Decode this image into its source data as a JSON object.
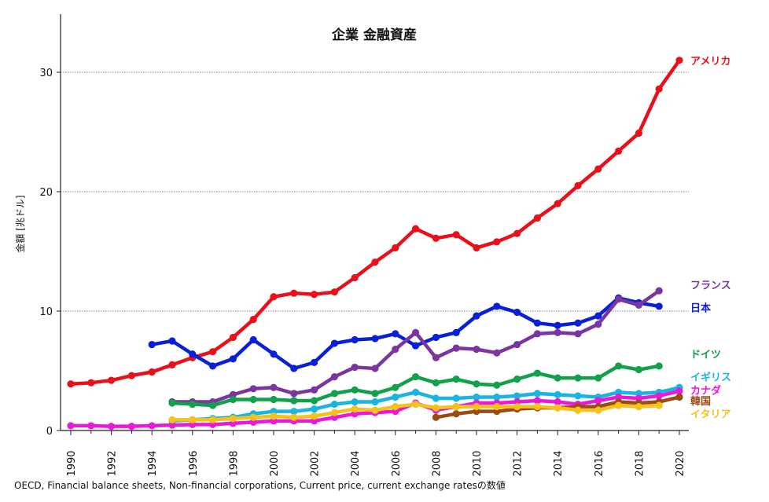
{
  "chart_data": {
    "type": "line",
    "title": "企業 金融資産",
    "ylabel": "金額 [兆ドル]",
    "xlabel": "",
    "xlim": [
      1990,
      2020
    ],
    "ylim": [
      0,
      35
    ],
    "yticks": [
      0,
      10,
      20,
      30
    ],
    "xticks": [
      1990,
      1992,
      1994,
      1996,
      1998,
      2000,
      2002,
      2004,
      2006,
      2008,
      2010,
      2012,
      2014,
      2016,
      2018,
      2020
    ],
    "grid": "horizontal dotted at 10, 20, 30",
    "legend": "labels at right end of lines",
    "source": "OECD, Financial balance sheets, Non-financial corporations, Current price, current exchange ratesの数値",
    "series": [
      {
        "name": "アメリカ",
        "color": "#e8101a",
        "x": [
          1990,
          1991,
          1992,
          1993,
          1994,
          1995,
          1996,
          1997,
          1998,
          1999,
          2000,
          2001,
          2002,
          2003,
          2004,
          2005,
          2006,
          2007,
          2008,
          2009,
          2010,
          2011,
          2012,
          2013,
          2014,
          2015,
          2016,
          2017,
          2018,
          2019,
          2020
        ],
        "values": [
          3.9,
          4.0,
          4.2,
          4.6,
          4.9,
          5.5,
          6.1,
          6.6,
          7.8,
          9.3,
          11.2,
          11.5,
          11.4,
          11.6,
          12.8,
          14.1,
          15.3,
          16.9,
          16.1,
          16.4,
          15.3,
          15.8,
          16.5,
          17.8,
          19.0,
          20.5,
          21.9,
          23.4,
          24.9,
          28.6,
          31.0
        ]
      },
      {
        "name": "日本",
        "color": "#0a1fd8",
        "x": [
          1994,
          1995,
          1996,
          1997,
          1998,
          1999,
          2000,
          2001,
          2002,
          2003,
          2004,
          2005,
          2006,
          2007,
          2008,
          2009,
          2010,
          2011,
          2012,
          2013,
          2014,
          2015,
          2016,
          2017,
          2018,
          2019
        ],
        "values": [
          7.2,
          7.5,
          6.4,
          5.4,
          6.0,
          7.6,
          6.4,
          5.2,
          5.7,
          7.3,
          7.6,
          7.7,
          8.1,
          7.1,
          7.8,
          8.2,
          9.6,
          10.4,
          9.9,
          9.0,
          8.8,
          9.0,
          9.6,
          11.1,
          10.7,
          10.4
        ]
      },
      {
        "name": "フランス",
        "color": "#7a35a0",
        "x": [
          1995,
          1996,
          1997,
          1998,
          1999,
          2000,
          2001,
          2002,
          2003,
          2004,
          2005,
          2006,
          2007,
          2008,
          2009,
          2010,
          2011,
          2012,
          2013,
          2014,
          2015,
          2016,
          2017,
          2018,
          2019
        ],
        "values": [
          2.4,
          2.4,
          2.4,
          3.0,
          3.5,
          3.6,
          3.1,
          3.4,
          4.5,
          5.3,
          5.2,
          6.8,
          8.2,
          6.1,
          6.9,
          6.8,
          6.5,
          7.2,
          8.1,
          8.2,
          8.1,
          8.9,
          11.0,
          10.5,
          11.7
        ]
      },
      {
        "name": "ドイツ",
        "color": "#12a04a",
        "x": [
          1995,
          1996,
          1997,
          1998,
          1999,
          2000,
          2001,
          2002,
          2003,
          2004,
          2005,
          2006,
          2007,
          2008,
          2009,
          2010,
          2011,
          2012,
          2013,
          2014,
          2015,
          2016,
          2017,
          2018,
          2019
        ],
        "values": [
          2.3,
          2.2,
          2.1,
          2.6,
          2.6,
          2.6,
          2.5,
          2.5,
          3.1,
          3.4,
          3.1,
          3.6,
          4.5,
          4.0,
          4.3,
          3.9,
          3.8,
          4.3,
          4.8,
          4.4,
          4.4,
          4.4,
          5.4,
          5.1,
          5.4
        ]
      },
      {
        "name": "イギリス",
        "color": "#19b5e0",
        "x": [
          1995,
          1996,
          1997,
          1998,
          1999,
          2000,
          2001,
          2002,
          2003,
          2004,
          2005,
          2006,
          2007,
          2008,
          2009,
          2010,
          2011,
          2012,
          2013,
          2014,
          2015,
          2016,
          2017,
          2018,
          2019,
          2020
        ],
        "values": [
          0.8,
          0.9,
          1.0,
          1.1,
          1.4,
          1.6,
          1.6,
          1.8,
          2.2,
          2.4,
          2.4,
          2.8,
          3.2,
          2.7,
          2.7,
          2.8,
          2.8,
          2.9,
          3.1,
          3.0,
          2.9,
          2.8,
          3.2,
          3.1,
          3.2,
          3.6
        ]
      },
      {
        "name": "カナダ",
        "color": "#ea18d8",
        "x": [
          1990,
          1991,
          1992,
          1993,
          1994,
          1995,
          1996,
          1997,
          1998,
          1999,
          2000,
          2001,
          2002,
          2003,
          2004,
          2005,
          2006,
          2007,
          2008,
          2009,
          2010,
          2011,
          2012,
          2013,
          2014,
          2015,
          2016,
          2017,
          2018,
          2019,
          2020
        ],
        "values": [
          0.4,
          0.4,
          0.35,
          0.35,
          0.4,
          0.45,
          0.5,
          0.5,
          0.6,
          0.7,
          0.8,
          0.8,
          0.8,
          1.1,
          1.4,
          1.5,
          1.6,
          2.3,
          1.7,
          2.0,
          2.3,
          2.3,
          2.4,
          2.5,
          2.4,
          2.2,
          2.5,
          2.8,
          2.7,
          2.9,
          3.3
        ]
      },
      {
        "name": "韓国",
        "color": "#9a4a12",
        "x": [
          2008,
          2009,
          2010,
          2011,
          2012,
          2013,
          2014,
          2015,
          2016,
          2017,
          2018,
          2019,
          2020
        ],
        "values": [
          1.1,
          1.4,
          1.6,
          1.6,
          1.8,
          1.9,
          1.9,
          2.0,
          2.0,
          2.4,
          2.3,
          2.4,
          2.8
        ]
      },
      {
        "name": "イタリア",
        "color": "#f5c21a",
        "x": [
          1995,
          1996,
          1997,
          1998,
          1999,
          2000,
          2001,
          2002,
          2003,
          2004,
          2005,
          2006,
          2007,
          2008,
          2009,
          2010,
          2011,
          2012,
          2013,
          2014,
          2015,
          2016,
          2017,
          2018,
          2019
        ],
        "values": [
          0.9,
          0.9,
          0.9,
          1.0,
          1.1,
          1.2,
          1.1,
          1.2,
          1.5,
          1.8,
          1.7,
          2.0,
          2.2,
          1.9,
          2.0,
          2.0,
          2.0,
          2.0,
          2.0,
          1.9,
          1.7,
          1.7,
          2.1,
          2.0,
          2.1
        ]
      }
    ],
    "label_positions": {
      "アメリカ": 31.0,
      "フランス": 12.2,
      "日本": 10.3,
      "ドイツ": 6.4,
      "イギリス": 4.5,
      "カナダ": 3.4,
      "韓国": 2.5,
      "イタリア": 1.4
    }
  }
}
